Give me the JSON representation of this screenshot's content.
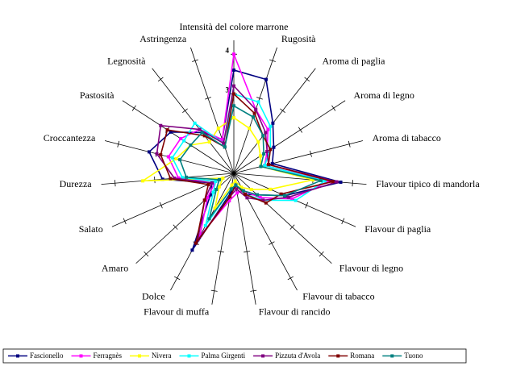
{
  "chart_data": {
    "type": "radar",
    "categories": [
      "Intensità del colore marrone",
      "Rugosità",
      "Aroma di paglia",
      "Aroma di legno",
      "Aroma di tabacco",
      "Flavour tipico di mandorla",
      "Flavour di paglia",
      "Flavour di legno",
      "Flavour di tabacco",
      "Flavour di rancido",
      "Flavour di muffa",
      "Dolce",
      "Amaro",
      "Salato",
      "Durezza",
      "Croccantezza",
      "Pastosità",
      "Legnosità",
      "Astringenza"
    ],
    "rlim": [
      1,
      4.35
    ],
    "rticks": [
      3,
      4
    ],
    "series": [
      {
        "name": "Fascionello",
        "color": "#000080",
        "values": [
          3.6,
          3.5,
          2.6,
          2.2,
          2.0,
          3.7,
          2.4,
          1.8,
          1.6,
          1.3,
          1.5,
          3.2,
          1.8,
          1.6,
          2.8,
          3.2,
          2.9,
          2.3,
          1.9
        ]
      },
      {
        "name": "Ferragnès",
        "color": "#ff00ff",
        "values": [
          4.0,
          2.7,
          2.4,
          2.0,
          1.8,
          3.4,
          2.6,
          1.9,
          1.5,
          1.5,
          1.7,
          2.8,
          1.9,
          1.5,
          2.4,
          2.7,
          2.6,
          2.4,
          1.9
        ]
      },
      {
        "name": "Nivera",
        "color": "#ffff00",
        "values": [
          2.4,
          2.2,
          2.0,
          1.8,
          1.7,
          3.0,
          2.0,
          1.6,
          1.4,
          1.2,
          1.3,
          2.0,
          1.5,
          1.3,
          3.3,
          2.5,
          2.3,
          2.0,
          2.2
        ]
      },
      {
        "name": "Palma Girgenti",
        "color": "#00ffff",
        "values": [
          3.0,
          2.9,
          2.5,
          2.1,
          1.8,
          3.3,
          2.7,
          2.0,
          1.6,
          1.3,
          1.4,
          2.5,
          1.7,
          1.5,
          2.3,
          2.6,
          2.5,
          2.6,
          1.8
        ]
      },
      {
        "name": "Pizzuta d'Avola",
        "color": "#800080",
        "values": [
          3.2,
          2.7,
          2.3,
          2.0,
          1.9,
          3.6,
          2.5,
          2.0,
          1.7,
          1.4,
          1.6,
          2.9,
          2.0,
          1.6,
          2.5,
          3.0,
          3.2,
          2.4,
          1.8
        ]
      },
      {
        "name": "Romana",
        "color": "#800000",
        "values": [
          3.0,
          2.6,
          2.2,
          2.1,
          1.9,
          3.5,
          2.3,
          2.1,
          1.6,
          1.3,
          1.6,
          3.0,
          2.0,
          1.7,
          2.6,
          2.9,
          3.0,
          2.2,
          1.7
        ]
      },
      {
        "name": "Tuono",
        "color": "#008080",
        "values": [
          2.7,
          2.5,
          2.2,
          1.9,
          1.7,
          3.2,
          2.4,
          1.8,
          1.5,
          1.3,
          1.4,
          2.3,
          1.6,
          1.4,
          2.2,
          2.4,
          2.3,
          2.3,
          1.7
        ]
      }
    ]
  }
}
